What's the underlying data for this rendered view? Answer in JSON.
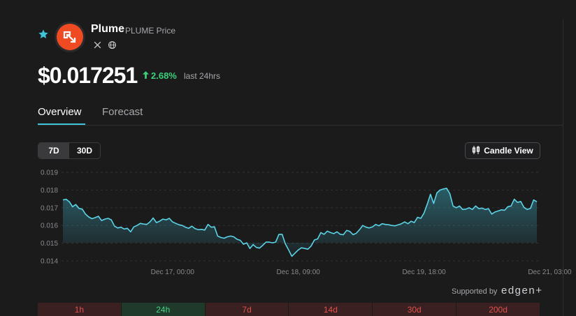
{
  "coin": {
    "name": "Plume",
    "subtitle": "PLUME Price",
    "price": "$0.017251",
    "change": "2.68%",
    "change_period": "last 24hrs",
    "accent_color": "#3fc3d9",
    "logo_color": "#f04a23",
    "up_color": "#3bd17a",
    "down_color": "#e0514b"
  },
  "social": [
    "x-icon",
    "globe-icon"
  ],
  "tabs": [
    {
      "label": "Overview",
      "active": true
    },
    {
      "label": "Forecast",
      "active": false
    }
  ],
  "range_toggle": [
    {
      "label": "7D",
      "active": true
    },
    {
      "label": "30D",
      "active": false
    }
  ],
  "candle_button": {
    "label": "Candle View"
  },
  "supported": {
    "label": "Supported by",
    "brand": "edgen+"
  },
  "timeframes": [
    {
      "label": "1h",
      "trend": "down"
    },
    {
      "label": "24h",
      "trend": "up"
    },
    {
      "label": "7d",
      "trend": "down"
    },
    {
      "label": "14d",
      "trend": "down"
    },
    {
      "label": "30d",
      "trend": "down"
    },
    {
      "label": "200d",
      "trend": "down"
    }
  ],
  "chart_data": {
    "type": "area",
    "ylim": [
      0.0138,
      0.0192
    ],
    "yticks": [
      "0.019",
      "0.018",
      "0.017",
      "0.016",
      "0.015",
      "0.014"
    ],
    "ytick_values": [
      0.019,
      0.018,
      0.017,
      0.016,
      0.015,
      0.014
    ],
    "xtick_labels": [
      "Dec 17, 00:00",
      "Dec 18, 09:00",
      "Dec 19, 18:00",
      "Dec 21, 03:00"
    ],
    "xtick_index": [
      34,
      73,
      112,
      151
    ],
    "grid": true,
    "line_color": "#5ad4e6",
    "values": [
      0.01744,
      0.01748,
      0.01734,
      0.01706,
      0.01718,
      0.01696,
      0.01692,
      0.01664,
      0.01648,
      0.01638,
      0.01644,
      0.01652,
      0.01628,
      0.01636,
      0.0164,
      0.01632,
      0.01596,
      0.01586,
      0.0159,
      0.0158,
      0.01584,
      0.01564,
      0.01592,
      0.016,
      0.01612,
      0.01608,
      0.01606,
      0.0162,
      0.01642,
      0.01616,
      0.01624,
      0.01636,
      0.01632,
      0.0164,
      0.0162,
      0.01612,
      0.01604,
      0.016,
      0.0159,
      0.01584,
      0.01596,
      0.01582,
      0.01576,
      0.01578,
      0.01574,
      0.01606,
      0.0159,
      0.01592,
      0.0154,
      0.01532,
      0.01528,
      0.01536,
      0.0154,
      0.01536,
      0.01522,
      0.01516,
      0.01494,
      0.01502,
      0.0147,
      0.01492,
      0.01476,
      0.01472,
      0.01488,
      0.01506,
      0.01506,
      0.01502,
      0.01506,
      0.0155,
      0.0155,
      0.01496,
      0.01462,
      0.01426,
      0.01444,
      0.01462,
      0.01474,
      0.0147,
      0.01466,
      0.01484,
      0.01518,
      0.01524,
      0.0156,
      0.0155,
      0.01568,
      0.0156,
      0.01554,
      0.01564,
      0.0155,
      0.01548,
      0.01572,
      0.01566,
      0.01548,
      0.01556,
      0.01576,
      0.016,
      0.0159,
      0.01586,
      0.01592,
      0.01606,
      0.01598,
      0.0161,
      0.01606,
      0.01604,
      0.016,
      0.01598,
      0.01604,
      0.0161,
      0.0162,
      0.0161,
      0.01624,
      0.01616,
      0.01646,
      0.0164,
      0.0167,
      0.0172,
      0.01776,
      0.01724,
      0.01784,
      0.018,
      0.01806,
      0.0181,
      0.0178,
      0.0171,
      0.017,
      0.0171,
      0.0169,
      0.01692,
      0.017,
      0.0169,
      0.0171,
      0.01695,
      0.01698,
      0.0169,
      0.01695,
      0.01664,
      0.01676,
      0.01682,
      0.01688,
      0.01686,
      0.01706,
      0.0171,
      0.01748,
      0.0173,
      0.01736,
      0.01702,
      0.0169,
      0.01696,
      0.01744,
      0.01734
    ]
  }
}
